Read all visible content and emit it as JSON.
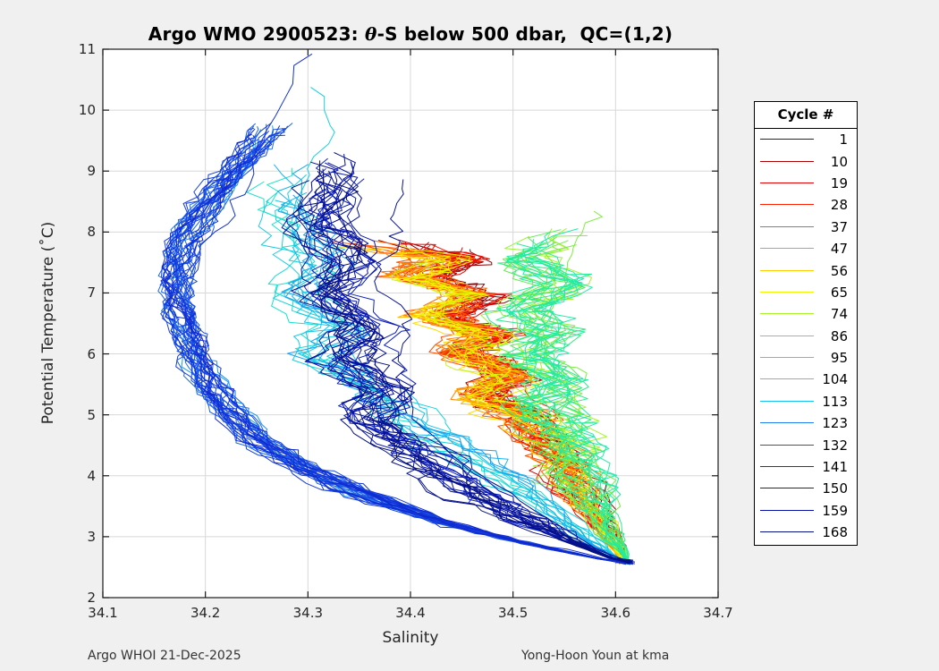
{
  "figure": {
    "background": "#f0f0f0",
    "title": {
      "prefix": "Argo WMO 2900523: ",
      "theta": "θ",
      "suffix": "-S below 500 dbar,  QC=(1,2)"
    },
    "footer_left": "Argo WHOI 21-Dec-2025",
    "footer_right": "Yong-Hoon Youn at kma"
  },
  "chart_data": {
    "type": "line",
    "title": "Argo WMO 2900523: θ-S below 500 dbar,  QC=(1,2)",
    "xlabel": "Salinity",
    "ylabel": "Potential Temperature (˚C)",
    "xlim": [
      34.1,
      34.7
    ],
    "ylim": [
      2,
      11
    ],
    "xticks": [
      34.1,
      34.2,
      34.3,
      34.4,
      34.5,
      34.6,
      34.7
    ],
    "x_tick_labels": [
      "34.1",
      "34.2",
      "34.3",
      "34.4",
      "34.5",
      "34.6",
      "34.7"
    ],
    "yticks": [
      2,
      3,
      4,
      5,
      6,
      7,
      8,
      9,
      10,
      11
    ],
    "y_tick_labels": [
      "2",
      "3",
      "4",
      "5",
      "6",
      "7",
      "8",
      "9",
      "10",
      "11"
    ],
    "grid": true,
    "grid_color": "#d8d8d8",
    "axis_color": "#1a1a1a",
    "description": "Theta-S profiles below 500 dbar for Argo float WMO 2900523, cycles 1-168, colored by cycle number with a reversed jet colormap (cycle 1 dark red, cycle 168 dark navy). Early red/orange cycles cluster near S 34.40-34.55, T 5-7.8; green cycles form a band near S 34.50-34.58; late blue cycles sweep left to S 34.17 between T 4-10; all profiles converge at depth near S 34.61, T 2.55.",
    "convergence_point": [
      34.61,
      2.55
    ],
    "legend": {
      "title": "Cycle #",
      "position": "outside-right",
      "entries": [
        {
          "cycle": 1,
          "label": "1",
          "color": "#7E0000"
        },
        {
          "cycle": 10,
          "label": "10",
          "color": "#AD0000"
        },
        {
          "cycle": 19,
          "label": "19",
          "color": "#E20000"
        },
        {
          "cycle": 28,
          "label": "28",
          "color": "#FF1E00"
        },
        {
          "cycle": 37,
          "label": "37",
          "color": "#FF5A00"
        },
        {
          "cycle": 47,
          "label": "47",
          "color": "#FF9600"
        },
        {
          "cycle": 56,
          "label": "56",
          "color": "#FFCD00"
        },
        {
          "cycle": 65,
          "label": "65",
          "color": "#F0F800"
        },
        {
          "cycle": 74,
          "label": "74",
          "color": "#A8F32A"
        },
        {
          "cycle": 86,
          "label": "86",
          "color": "#53E95A"
        },
        {
          "cycle": 95,
          "label": "95",
          "color": "#2BEC8C"
        },
        {
          "cycle": 104,
          "label": "104",
          "color": "#18E8C4"
        },
        {
          "cycle": 113,
          "label": "113",
          "color": "#15C3EE"
        },
        {
          "cycle": 123,
          "label": "123",
          "color": "#1F7FF2"
        },
        {
          "cycle": 132,
          "label": "132",
          "color": "#1A52E6"
        },
        {
          "cycle": 141,
          "label": "141",
          "color": "#1231D8"
        },
        {
          "cycle": 150,
          "label": "150",
          "color": "#0C1EC2"
        },
        {
          "cycle": 159,
          "label": "159",
          "color": "#0713A6"
        },
        {
          "cycle": 168,
          "label": "168",
          "color": "#051080"
        }
      ]
    },
    "profile_eras": [
      {
        "name": "early-red",
        "cycle_min": 1,
        "cycle_max": 30,
        "n_lines": 20,
        "spread": 0.018,
        "jitter": 0.016,
        "wander": 0.012,
        "anchors": [
          [
            34.4,
            7.85
          ],
          [
            34.455,
            7.55
          ],
          [
            34.415,
            7.25
          ],
          [
            34.47,
            6.95
          ],
          [
            34.435,
            6.6
          ],
          [
            34.485,
            6.3
          ],
          [
            34.45,
            6.0
          ],
          [
            34.5,
            5.7
          ],
          [
            34.475,
            5.35
          ],
          [
            34.515,
            5.0
          ],
          [
            34.53,
            4.55
          ],
          [
            34.55,
            4.0
          ],
          [
            34.575,
            3.4
          ],
          [
            34.6,
            2.95
          ],
          [
            34.607,
            2.58
          ]
        ]
      },
      {
        "name": "orange",
        "cycle_min": 31,
        "cycle_max": 58,
        "n_lines": 18,
        "spread": 0.02,
        "jitter": 0.017,
        "wander": 0.014,
        "anchors": [
          [
            34.345,
            7.8
          ],
          [
            34.43,
            7.6
          ],
          [
            34.39,
            7.3
          ],
          [
            34.455,
            7.0
          ],
          [
            34.42,
            6.65
          ],
          [
            34.475,
            6.35
          ],
          [
            34.44,
            6.0
          ],
          [
            34.49,
            5.65
          ],
          [
            34.465,
            5.3
          ],
          [
            34.515,
            4.95
          ],
          [
            34.535,
            4.45
          ],
          [
            34.555,
            3.9
          ],
          [
            34.58,
            3.3
          ],
          [
            34.607,
            2.6
          ]
        ]
      },
      {
        "name": "yellow",
        "cycle_min": 59,
        "cycle_max": 71,
        "n_lines": 8,
        "spread": 0.02,
        "jitter": 0.017,
        "wander": 0.014,
        "anchors": [
          [
            34.35,
            7.75
          ],
          [
            34.435,
            7.55
          ],
          [
            34.395,
            7.25
          ],
          [
            34.46,
            6.95
          ],
          [
            34.425,
            6.6
          ],
          [
            34.48,
            6.3
          ],
          [
            34.445,
            5.95
          ],
          [
            34.495,
            5.6
          ],
          [
            34.47,
            5.25
          ],
          [
            34.52,
            4.9
          ],
          [
            34.54,
            4.4
          ],
          [
            34.56,
            3.85
          ],
          [
            34.585,
            3.25
          ],
          [
            34.608,
            2.6
          ]
        ]
      },
      {
        "name": "green",
        "cycle_min": 72,
        "cycle_max": 100,
        "n_lines": 24,
        "spread": 0.022,
        "jitter": 0.016,
        "wander": 0.02,
        "anchors": [
          [
            34.545,
            8.0
          ],
          [
            34.515,
            7.55
          ],
          [
            34.545,
            7.15
          ],
          [
            34.51,
            6.75
          ],
          [
            34.54,
            6.35
          ],
          [
            34.515,
            5.95
          ],
          [
            34.545,
            5.55
          ],
          [
            34.53,
            5.15
          ],
          [
            34.55,
            4.7
          ],
          [
            34.56,
            4.2
          ],
          [
            34.575,
            3.65
          ],
          [
            34.595,
            3.05
          ],
          [
            34.613,
            2.6
          ]
        ]
      },
      {
        "name": "cyan",
        "cycle_min": 101,
        "cycle_max": 118,
        "n_lines": 13,
        "spread": 0.025,
        "jitter": 0.014,
        "wander": 0.018,
        "anchors": [
          [
            34.29,
            9.1
          ],
          [
            34.265,
            8.5
          ],
          [
            34.29,
            7.95
          ],
          [
            34.315,
            7.45
          ],
          [
            34.285,
            6.95
          ],
          [
            34.33,
            6.45
          ],
          [
            34.305,
            5.95
          ],
          [
            34.355,
            5.5
          ],
          [
            34.39,
            5.05
          ],
          [
            34.43,
            4.6
          ],
          [
            34.475,
            4.1
          ],
          [
            34.525,
            3.55
          ],
          [
            34.575,
            2.95
          ],
          [
            34.606,
            2.6
          ]
        ]
      },
      {
        "name": "blue",
        "cycle_min": 119,
        "cycle_max": 146,
        "n_lines": 34,
        "spread": 0.013,
        "jitter": 0.006,
        "wander": 0.012,
        "anchors": [
          [
            34.265,
            9.75
          ],
          [
            34.24,
            9.3
          ],
          [
            34.215,
            8.8
          ],
          [
            34.195,
            8.3
          ],
          [
            34.18,
            7.8
          ],
          [
            34.172,
            7.3
          ],
          [
            34.17,
            6.85
          ],
          [
            34.178,
            6.4
          ],
          [
            34.19,
            5.95
          ],
          [
            34.205,
            5.5
          ],
          [
            34.225,
            5.05
          ],
          [
            34.25,
            4.6
          ],
          [
            34.29,
            4.15
          ],
          [
            34.35,
            3.7
          ],
          [
            34.43,
            3.25
          ],
          [
            34.51,
            2.9
          ],
          [
            34.608,
            2.55
          ]
        ]
      },
      {
        "name": "navy",
        "cycle_min": 147,
        "cycle_max": 168,
        "n_lines": 24,
        "spread": 0.028,
        "jitter": 0.013,
        "wander": 0.016,
        "anchors": [
          [
            34.315,
            9.3
          ],
          [
            34.33,
            8.7
          ],
          [
            34.315,
            8.1
          ],
          [
            34.345,
            7.55
          ],
          [
            34.325,
            7.0
          ],
          [
            34.36,
            6.45
          ],
          [
            34.34,
            5.9
          ],
          [
            34.375,
            5.4
          ],
          [
            34.36,
            4.9
          ],
          [
            34.41,
            4.4
          ],
          [
            34.45,
            3.9
          ],
          [
            34.5,
            3.4
          ],
          [
            34.555,
            2.95
          ],
          [
            34.608,
            2.56
          ]
        ]
      }
    ],
    "special_profiles": [
      {
        "cycle": 141,
        "anchors": [
          [
            34.305,
            10.95
          ],
          [
            34.275,
            9.9
          ],
          [
            34.245,
            9.0
          ],
          [
            34.215,
            8.3
          ],
          [
            34.19,
            7.6
          ],
          [
            34.18,
            7.0
          ],
          [
            34.19,
            6.2
          ],
          [
            34.21,
            5.4
          ],
          [
            34.25,
            4.6
          ],
          [
            34.33,
            3.9
          ],
          [
            34.44,
            3.2
          ],
          [
            34.53,
            2.85
          ],
          [
            34.61,
            2.56
          ]
        ]
      },
      {
        "cycle": 110,
        "anchors": [
          [
            34.3,
            10.42
          ],
          [
            34.315,
            9.6
          ],
          [
            34.3,
            8.9
          ],
          [
            34.285,
            8.2
          ],
          [
            34.27,
            7.6
          ],
          [
            34.3,
            6.9
          ],
          [
            34.33,
            6.2
          ],
          [
            34.36,
            5.5
          ],
          [
            34.41,
            4.8
          ],
          [
            34.47,
            4.1
          ],
          [
            34.53,
            3.4
          ],
          [
            34.6,
            2.62
          ]
        ]
      },
      {
        "cycle": 80,
        "anchors": [
          [
            34.575,
            8.35
          ],
          [
            34.56,
            7.9
          ],
          [
            34.545,
            7.4
          ],
          [
            34.55,
            6.9
          ],
          [
            34.53,
            6.3
          ],
          [
            34.545,
            5.7
          ],
          [
            34.55,
            5.0
          ],
          [
            34.565,
            4.3
          ],
          [
            34.58,
            3.6
          ],
          [
            34.605,
            2.9
          ],
          [
            34.615,
            2.6
          ]
        ]
      },
      {
        "cycle": 163,
        "anchors": [
          [
            34.385,
            8.9
          ],
          [
            34.375,
            8.3
          ],
          [
            34.39,
            7.8
          ],
          [
            34.375,
            7.2
          ],
          [
            34.395,
            6.6
          ],
          [
            34.38,
            6.0
          ],
          [
            34.4,
            5.4
          ],
          [
            34.42,
            4.8
          ],
          [
            34.46,
            4.1
          ],
          [
            34.52,
            3.4
          ],
          [
            34.605,
            2.58
          ]
        ]
      }
    ],
    "render_seed": 20251221
  }
}
